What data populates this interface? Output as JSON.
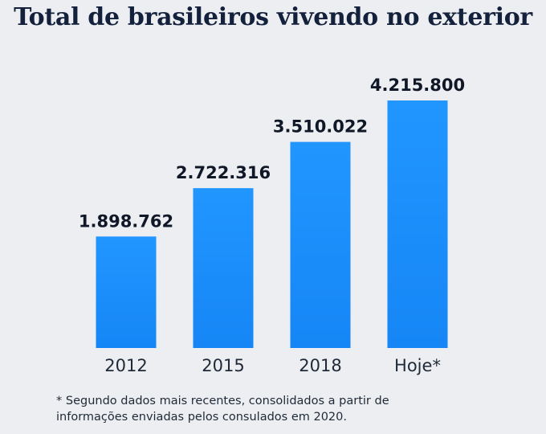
{
  "title": "Total de brasileiros vivendo no exterior",
  "footnote": "* Segundo dados mais recentes, consolidados a partir de informações enviadas pelos consulados em 2020.",
  "colors": {
    "background": "#eceef1",
    "bar": "#1e90ff",
    "title": "#14213d"
  },
  "chart_data": {
    "type": "bar",
    "title": "Total de brasileiros vivendo no exterior",
    "categories": [
      "2012",
      "2015",
      "2018",
      "Hoje*"
    ],
    "values": [
      1898762,
      2722316,
      3510022,
      4215800
    ],
    "value_labels": [
      "1.898.762",
      "2.722.316",
      "3.510.022",
      "4.215.800"
    ],
    "xlabel": "",
    "ylabel": "",
    "ylim": [
      0,
      4215800
    ],
    "grid": false,
    "legend": "none"
  }
}
